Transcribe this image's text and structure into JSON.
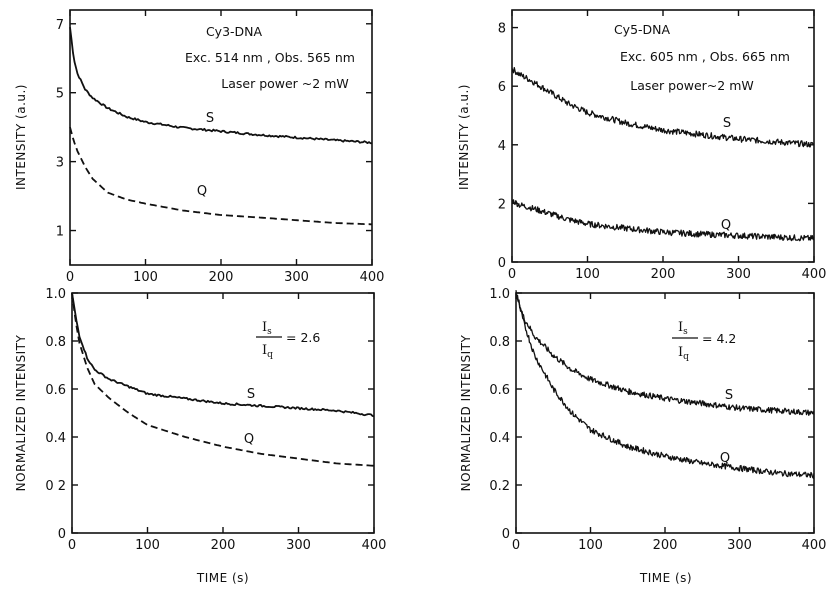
{
  "chart_data": [
    {
      "id": "p1",
      "type": "line",
      "xlabel": "",
      "ylabel": "INTENSITY (a.u.)",
      "xlim": [
        0,
        400
      ],
      "ylim": [
        0,
        7.4
      ],
      "xticks": [
        "0",
        "100",
        "200",
        "300",
        "400"
      ],
      "yticks": [
        "1",
        "3",
        "5",
        "7"
      ],
      "annotations": [
        "Cy3-DNA",
        "Exc. 514 nm , Obs. 565 nm",
        "Laser power ~2 mW"
      ],
      "series": [
        {
          "name": "S",
          "style": "solid",
          "x": [
            0,
            5,
            10,
            20,
            30,
            50,
            75,
            100,
            150,
            200,
            250,
            300,
            350,
            400
          ],
          "y": [
            6.9,
            6.0,
            5.55,
            5.1,
            4.85,
            4.55,
            4.3,
            4.15,
            3.98,
            3.88,
            3.78,
            3.7,
            3.62,
            3.55
          ]
        },
        {
          "name": "Q",
          "style": "dashed",
          "x": [
            0,
            5,
            10,
            20,
            30,
            50,
            75,
            100,
            150,
            200,
            250,
            300,
            350,
            400
          ],
          "y": [
            4.0,
            3.6,
            3.3,
            2.85,
            2.5,
            2.1,
            1.9,
            1.78,
            1.58,
            1.45,
            1.38,
            1.3,
            1.22,
            1.18
          ]
        }
      ]
    },
    {
      "id": "p2",
      "type": "line",
      "xlabel": "",
      "ylabel": "INTENSITY (a.u.)",
      "xlim": [
        0,
        400
      ],
      "ylim": [
        0,
        8.6
      ],
      "xticks": [
        "0",
        "100",
        "200",
        "300",
        "400"
      ],
      "yticks": [
        "0",
        "2",
        "4",
        "6",
        "8"
      ],
      "annotations": [
        "Cy5-DNA",
        "Exc. 605 nm , Obs. 665 nm",
        "Laser power~2 mW"
      ],
      "series": [
        {
          "name": "S",
          "style": "solid-noisy",
          "x": [
            0,
            10,
            25,
            50,
            75,
            100,
            150,
            200,
            250,
            300,
            350,
            400
          ],
          "y": [
            6.6,
            6.4,
            6.2,
            5.8,
            5.4,
            5.1,
            4.75,
            4.5,
            4.35,
            4.2,
            4.1,
            4.0
          ]
        },
        {
          "name": "Q",
          "style": "solid-noisy",
          "x": [
            0,
            10,
            25,
            50,
            75,
            100,
            150,
            200,
            250,
            300,
            350,
            400
          ],
          "y": [
            2.1,
            1.95,
            1.85,
            1.65,
            1.45,
            1.3,
            1.15,
            1.02,
            0.95,
            0.9,
            0.85,
            0.8
          ]
        }
      ]
    },
    {
      "id": "p3",
      "type": "line",
      "xlabel": "TIME (s)",
      "ylabel": "NORMALIZED INTENSITY",
      "xlim": [
        0,
        400
      ],
      "ylim": [
        0,
        1.0
      ],
      "xticks": [
        "0",
        "100",
        "200",
        "300",
        "400"
      ],
      "yticks": [
        "0",
        "0 2",
        "0.4",
        "0.6",
        "0.8",
        "1.0"
      ],
      "ratio": {
        "num": "I",
        "num_sub": "s",
        "den": "I",
        "den_sub": "q",
        "value": "= 2.6"
      },
      "series": [
        {
          "name": "S",
          "style": "solid",
          "x": [
            0,
            5,
            10,
            20,
            30,
            50,
            75,
            100,
            150,
            200,
            250,
            300,
            350,
            400
          ],
          "y": [
            1.0,
            0.9,
            0.82,
            0.73,
            0.68,
            0.64,
            0.61,
            0.58,
            0.56,
            0.54,
            0.53,
            0.52,
            0.51,
            0.49
          ]
        },
        {
          "name": "Q",
          "style": "dashed",
          "x": [
            0,
            5,
            10,
            20,
            30,
            50,
            75,
            100,
            150,
            200,
            250,
            300,
            350,
            400
          ],
          "y": [
            1.0,
            0.88,
            0.79,
            0.69,
            0.62,
            0.56,
            0.5,
            0.45,
            0.4,
            0.36,
            0.33,
            0.31,
            0.29,
            0.28
          ]
        }
      ]
    },
    {
      "id": "p4",
      "type": "line",
      "xlabel": "TIME (s)",
      "ylabel": "NORMALIZED INTENSITY",
      "xlim": [
        0,
        400
      ],
      "ylim": [
        0,
        1.0
      ],
      "xticks": [
        "0",
        "100",
        "200",
        "300",
        "400"
      ],
      "yticks": [
        "0",
        "0.2",
        "0.4",
        "0.6",
        "0.8",
        "1.0"
      ],
      "ratio": {
        "num": "I",
        "num_sub": "s",
        "den": "I",
        "den_sub": "q",
        "value": "= 4.2"
      },
      "series": [
        {
          "name": "S",
          "style": "solid-noisy",
          "x": [
            0,
            10,
            25,
            50,
            75,
            100,
            150,
            200,
            250,
            300,
            350,
            400
          ],
          "y": [
            1.0,
            0.9,
            0.82,
            0.74,
            0.68,
            0.64,
            0.59,
            0.56,
            0.54,
            0.52,
            0.51,
            0.5
          ]
        },
        {
          "name": "Q",
          "style": "solid-noisy",
          "x": [
            0,
            10,
            25,
            50,
            75,
            100,
            150,
            200,
            250,
            300,
            350,
            400
          ],
          "y": [
            1.0,
            0.88,
            0.74,
            0.6,
            0.5,
            0.43,
            0.36,
            0.32,
            0.29,
            0.27,
            0.25,
            0.24
          ]
        }
      ]
    }
  ]
}
